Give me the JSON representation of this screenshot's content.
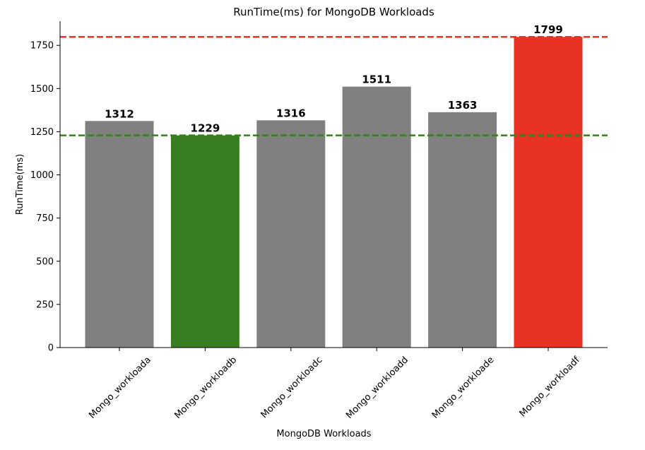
{
  "chart_data": {
    "type": "bar",
    "title": "RunTime(ms) for MongoDB Workloads",
    "xlabel": "MongoDB Workloads",
    "ylabel": "RunTime(ms)",
    "categories": [
      "Mongo_workloada",
      "Mongo_workloadb",
      "Mongo_workloadc",
      "Mongo_workloadd",
      "Mongo_workloade",
      "Mongo_workloadf"
    ],
    "values": [
      1312,
      1229,
      1316,
      1511,
      1363,
      1799
    ],
    "bar_colors": [
      "#808080",
      "#387d22",
      "#808080",
      "#808080",
      "#808080",
      "#e83324"
    ],
    "ylim": [
      0,
      1890
    ],
    "yticks": [
      0,
      250,
      500,
      750,
      1000,
      1250,
      1500,
      1750
    ],
    "reference_lines": [
      {
        "value": 1799,
        "color": "#e83324",
        "style": "dashed"
      },
      {
        "value": 1229,
        "color": "#387d22",
        "style": "dashed"
      }
    ],
    "grid": false,
    "legend": "none"
  }
}
